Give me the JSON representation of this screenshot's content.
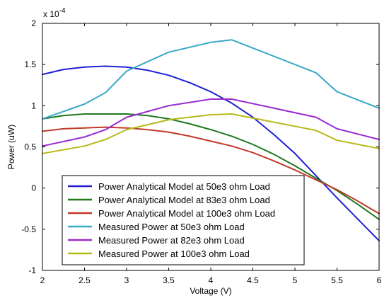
{
  "chart_data": {
    "type": "line",
    "title": "",
    "xlabel": "Voltage (V)",
    "ylabel": "Power (uW)",
    "exponent_label": "x 10",
    "exponent_power": "-4",
    "xlim": [
      2,
      6
    ],
    "ylim": [
      -1,
      2
    ],
    "xticks": [
      "2",
      "2.5",
      "3",
      "3.5",
      "4",
      "4.5",
      "5",
      "5.5",
      "6"
    ],
    "yticks": [
      "-1",
      "-0.5",
      "0",
      "0.5",
      "1",
      "1.5",
      "2"
    ],
    "legend_position": "bottom-left",
    "series": [
      {
        "name": "Power Analytical Model at 50e3 ohm Load",
        "color": "#1f1fd6",
        "x": [
          2,
          2.25,
          2.5,
          2.75,
          3,
          3.25,
          3.5,
          3.75,
          4,
          4.25,
          4.5,
          4.75,
          5,
          5.25,
          5.5,
          5.75,
          6
        ],
        "y": [
          1.38,
          1.44,
          1.47,
          1.48,
          1.47,
          1.43,
          1.37,
          1.28,
          1.17,
          1.03,
          0.86,
          0.65,
          0.42,
          0.15,
          -0.12,
          -0.38,
          -0.64
        ]
      },
      {
        "name": "Power Analytical Model at 83e3 ohm Load",
        "color": "#1e7a1e",
        "x": [
          2,
          2.25,
          2.5,
          2.75,
          3,
          3.25,
          3.5,
          3.75,
          4,
          4.25,
          4.5,
          4.75,
          5,
          5.25,
          5.5,
          5.75,
          6
        ],
        "y": [
          0.84,
          0.88,
          0.9,
          0.9,
          0.9,
          0.88,
          0.84,
          0.78,
          0.71,
          0.63,
          0.53,
          0.41,
          0.27,
          0.12,
          -0.03,
          -0.2,
          -0.38
        ]
      },
      {
        "name": "Power Analytical Model at 100e3 ohm Load",
        "color": "#c03a2b",
        "x": [
          2,
          2.25,
          2.5,
          2.75,
          3,
          3.25,
          3.5,
          3.75,
          4,
          4.25,
          4.5,
          4.75,
          5,
          5.25,
          5.5,
          5.75,
          6
        ],
        "y": [
          0.69,
          0.72,
          0.73,
          0.74,
          0.73,
          0.71,
          0.68,
          0.63,
          0.57,
          0.51,
          0.43,
          0.33,
          0.22,
          0.1,
          -0.02,
          -0.16,
          -0.31
        ]
      },
      {
        "name": "Measured Power at 50e3 ohm Load",
        "color": "#3aa8c8",
        "x": [
          2,
          2.5,
          2.75,
          3,
          3.5,
          4,
          4.25,
          5.25,
          5.5,
          6
        ],
        "y": [
          0.84,
          1.02,
          1.16,
          1.42,
          1.65,
          1.77,
          1.8,
          1.4,
          1.17,
          0.97
        ]
      },
      {
        "name": "Measured Power at 82e3 ohm Load",
        "color": "#9a2bd0",
        "x": [
          2,
          2.5,
          2.75,
          3,
          3.5,
          4,
          4.25,
          5.25,
          5.5,
          6
        ],
        "y": [
          0.51,
          0.62,
          0.71,
          0.86,
          1.0,
          1.08,
          1.08,
          0.86,
          0.72,
          0.59
        ]
      },
      {
        "name": "Measured Power at 100e3 ohm Load",
        "color": "#b8b81a",
        "x": [
          2,
          2.5,
          2.75,
          3,
          3.5,
          4,
          4.25,
          5.25,
          5.5,
          6
        ],
        "y": [
          0.42,
          0.51,
          0.59,
          0.71,
          0.83,
          0.89,
          0.9,
          0.7,
          0.58,
          0.48
        ]
      }
    ]
  }
}
